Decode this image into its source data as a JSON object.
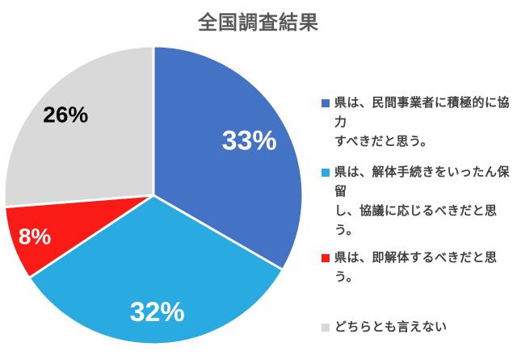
{
  "title": {
    "text": "全国調査結果",
    "color": "#595959"
  },
  "chart_data": {
    "type": "pie",
    "title": "全国調査結果",
    "categories": [
      "県は、民間事業者に積極的に協力すべきだと思う。",
      "県は、解体手続きをいったん保留し、協議に応じるべきだと思う。",
      "県は、即解体するべきだと思う。",
      "どちらとも言えない"
    ],
    "values": [
      33,
      32,
      8,
      26
    ],
    "unit": "%",
    "data_labels": [
      "33%",
      "32%",
      "8%",
      "26%"
    ],
    "colors": [
      "#4472C4",
      "#29ABE2",
      "#FB1B16",
      "#D9D9D9"
    ],
    "label_text_colors": [
      "#FFFFFF",
      "#FFFFFF",
      "#FFFFFF",
      "#000000"
    ],
    "label_font_sizes": [
      34,
      34,
      28,
      28
    ],
    "label_radius_fractions": [
      0.74,
      0.78,
      0.84,
      0.8
    ],
    "start_angle_deg": 0,
    "direction": "clockwise",
    "slice_border_color": "#FFFFFF",
    "legend_position": "right"
  },
  "legend": {
    "items": [
      {
        "label": "県は、民間事業者に積極的に協力すべきだと思う。",
        "lines": [
          "県は、民間事業者に積極的に協力",
          "すべきだと思う。"
        ],
        "color": "#4472C4"
      },
      {
        "label": "県は、解体手続きをいったん保留し、協議に応じるべきだと思う。",
        "lines": [
          "県は、解体手続きをいったん保留",
          "し、協議に応じるべきだと思う。"
        ],
        "color": "#29ABE2"
      },
      {
        "label": "県は、即解体するべきだと思う。",
        "lines": [
          "県は、即解体するべきだと思う。"
        ],
        "color": "#FB1B16"
      },
      {
        "label": "どちらとも言えない",
        "lines": [
          "どちらとも言えない"
        ],
        "color": "#D9D9D9"
      }
    ]
  }
}
